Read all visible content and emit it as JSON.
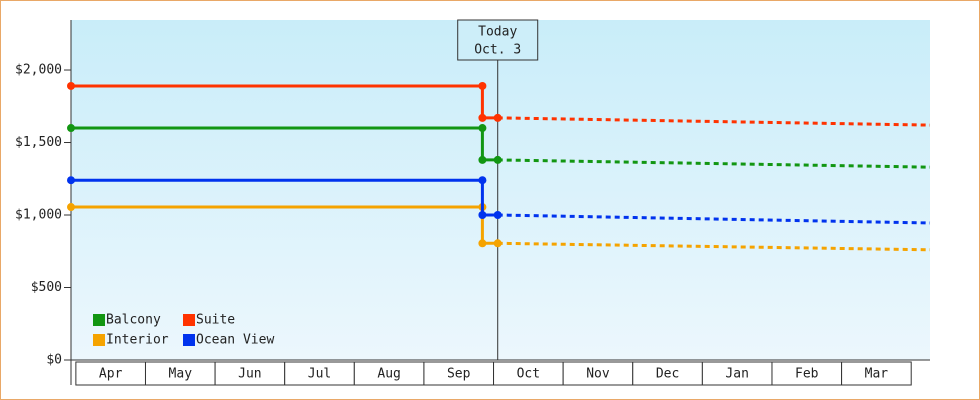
{
  "chart_data": {
    "type": "line",
    "ylim": [
      0,
      2345
    ],
    "yticks": [
      {
        "value": 0,
        "label": "$0"
      },
      {
        "value": 500,
        "label": "$500"
      },
      {
        "value": 1000,
        "label": "$1,000"
      },
      {
        "value": 1500,
        "label": "$1,500"
      },
      {
        "value": 2000,
        "label": "$2,000"
      }
    ],
    "xlim": [
      -0.07,
      12.27
    ],
    "xticks": [
      {
        "value": 0.5,
        "label": "Apr"
      },
      {
        "value": 1.5,
        "label": "May"
      },
      {
        "value": 2.5,
        "label": "Jun"
      },
      {
        "value": 3.5,
        "label": "Jul"
      },
      {
        "value": 4.5,
        "label": "Aug"
      },
      {
        "value": 5.5,
        "label": "Sep"
      },
      {
        "value": 6.5,
        "label": "Oct"
      },
      {
        "value": 7.5,
        "label": "Nov"
      },
      {
        "value": 8.5,
        "label": "Dec"
      },
      {
        "value": 9.5,
        "label": "Jan"
      },
      {
        "value": 10.5,
        "label": "Feb"
      },
      {
        "value": 11.5,
        "label": "Mar"
      }
    ],
    "x": [
      -0.07,
      5.84,
      5.84,
      6.06,
      12.27
    ],
    "today": {
      "x": 6.06,
      "lines": [
        "Today",
        "Oct. 3"
      ]
    },
    "legend": "lower left",
    "series": [
      {
        "name": "Balcony",
        "color": "#129612",
        "values": [
          1600,
          1600,
          1380,
          1380,
          1330
        ]
      },
      {
        "name": "Suite",
        "color": "#ff3300",
        "values": [
          1890,
          1890,
          1670,
          1670,
          1620
        ]
      },
      {
        "name": "Interior",
        "color": "#f5a300",
        "values": [
          1055,
          1055,
          805,
          805,
          760
        ]
      },
      {
        "name": "Ocean View",
        "color": "#0033ee",
        "values": [
          1240,
          1240,
          1000,
          1000,
          945
        ]
      }
    ]
  }
}
